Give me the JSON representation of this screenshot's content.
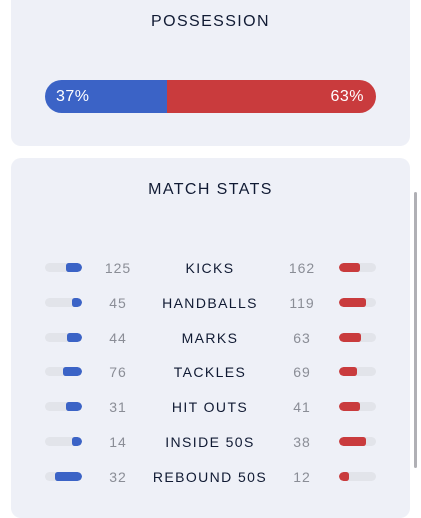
{
  "possession": {
    "title": "POSSESSION",
    "home_label": "37%",
    "away_label": "63%",
    "home_pct": 37,
    "away_pct": 63
  },
  "match_stats": {
    "title": "MATCH STATS",
    "rows": [
      {
        "label": "KICKS",
        "home": "125",
        "away": "162",
        "home_frac": 0.43,
        "away_frac": 0.57
      },
      {
        "label": "HANDBALLS",
        "home": "45",
        "away": "119",
        "home_frac": 0.27,
        "away_frac": 0.73
      },
      {
        "label": "MARKS",
        "home": "44",
        "away": "63",
        "home_frac": 0.41,
        "away_frac": 0.59
      },
      {
        "label": "TACKLES",
        "home": "76",
        "away": "69",
        "home_frac": 0.52,
        "away_frac": 0.48
      },
      {
        "label": "HIT OUTS",
        "home": "31",
        "away": "41",
        "home_frac": 0.43,
        "away_frac": 0.57
      },
      {
        "label": "INSIDE 50S",
        "home": "14",
        "away": "38",
        "home_frac": 0.27,
        "away_frac": 0.73
      },
      {
        "label": "REBOUND 50S",
        "home": "32",
        "away": "12",
        "home_frac": 0.73,
        "away_frac": 0.27
      }
    ]
  },
  "colors": {
    "home": "#3b63c6",
    "away": "#c93b3d",
    "card_bg": "#eef0f7"
  }
}
